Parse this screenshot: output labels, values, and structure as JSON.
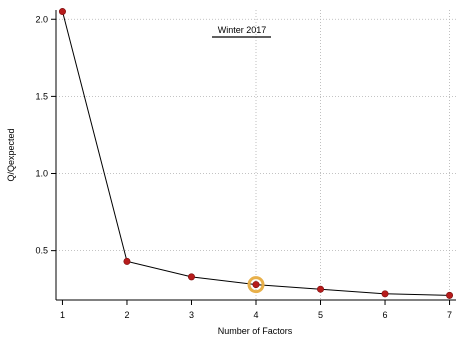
{
  "chart_data": {
    "type": "line",
    "x": [
      1,
      2,
      3,
      4,
      5,
      6,
      7
    ],
    "values": [
      2.05,
      0.43,
      0.33,
      0.28,
      0.25,
      0.22,
      0.21
    ],
    "xlabel": "Number of Factors",
    "ylabel": "Q/Qexpected",
    "xlim": [
      0.9,
      7.1
    ],
    "ylim": [
      0.18,
      2.06
    ],
    "x_ticks": [
      1,
      2,
      3,
      4,
      5,
      6,
      7
    ],
    "y_ticks": [
      0.5,
      1.0,
      1.5,
      2.0
    ],
    "x_tick_labels": [
      "1",
      "2",
      "3",
      "4",
      "5",
      "6",
      "7"
    ],
    "y_tick_labels": [
      "0.5",
      "1.0",
      "1.5",
      "2.0"
    ],
    "grid": "dotted",
    "annotation": "Winter 2017",
    "highlighted_x": 4,
    "colors": {
      "line": "#000000",
      "marker": "#b71c1c",
      "highlight_ring": "#e8b04a",
      "grid": "#b0b0b0"
    }
  }
}
